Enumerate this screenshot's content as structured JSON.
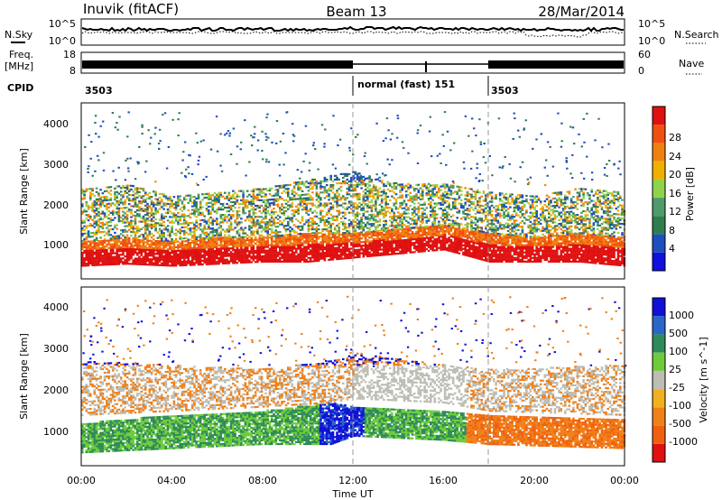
{
  "header": {
    "station": "Inuvik (fitACF)",
    "beam": "Beam 13",
    "date": "28/Mar/2014"
  },
  "colors": {
    "power": [
      "#1010e0",
      "#1e4fbf",
      "#2e7d4f",
      "#4e9a6a",
      "#8fd34a",
      "#f0b000",
      "#f08010",
      "#f05010",
      "#e01010"
    ],
    "velocity": [
      "#1010d8",
      "#2a66c8",
      "#2e8a5a",
      "#6ecc3a",
      "#bdbdb5",
      "#f0b020",
      "#f08018",
      "#f06010",
      "#e01010"
    ]
  },
  "chart_data": [
    {
      "type": "line",
      "name": "noise-panel",
      "left_label": "N.Sky",
      "right_label": "N.Search",
      "yticks_left": [
        "10^5",
        "10^0"
      ],
      "yticks_right": [
        "10^5",
        "10^0"
      ]
    },
    {
      "type": "bar",
      "name": "frequency-nave-panel",
      "left_label": "Freq.",
      "left_unit": "[MHz]",
      "right_label": "Nave",
      "yticks_left": [
        18,
        8
      ],
      "yticks_right": [
        60,
        0
      ]
    },
    {
      "type": "table",
      "name": "cpid-panel",
      "label": "CPID",
      "segments": [
        {
          "start_h": 0,
          "end_h": 12,
          "text": "3503"
        },
        {
          "start_h": 12,
          "end_h": 18,
          "text": "normal (fast) 151"
        },
        {
          "start_h": 18,
          "end_h": 24,
          "text": "3503"
        }
      ]
    },
    {
      "type": "heatmap",
      "name": "power-panel",
      "ylabel": "Slant Range [km]",
      "ylim": [
        200,
        4500
      ],
      "yticks": [
        1000,
        2000,
        3000,
        4000
      ],
      "xlim": [
        0,
        24
      ],
      "colorbar": {
        "label": "Power [dB]",
        "ticks": [
          4,
          8,
          12,
          16,
          20,
          24,
          28
        ]
      },
      "echo_bands": [
        {
          "x": [
            0,
            2,
            4,
            6,
            8,
            10,
            12,
            14,
            16,
            18,
            20,
            22,
            24
          ],
          "range_low": [
            500,
            550,
            500,
            550,
            600,
            600,
            700,
            800,
            900,
            600,
            600,
            600,
            500
          ],
          "range_high": [
            1100,
            1200,
            1100,
            1200,
            1200,
            1300,
            1300,
            1400,
            1500,
            1300,
            1200,
            1300,
            1200
          ],
          "level": 28
        },
        {
          "x": [
            0,
            2,
            4,
            6,
            8,
            10,
            12,
            14,
            16,
            18,
            20,
            22,
            24
          ],
          "range_low": [
            1100,
            1200,
            1100,
            1200,
            1200,
            1300,
            1300,
            1400,
            1500,
            1300,
            1200,
            1300,
            1200
          ],
          "range_high": [
            2400,
            2500,
            2200,
            2300,
            2400,
            2600,
            2800,
            2500,
            2500,
            2300,
            2200,
            2400,
            2300
          ],
          "level": 16
        }
      ]
    },
    {
      "type": "heatmap",
      "name": "velocity-panel",
      "ylabel": "Slant Range [km]",
      "xlabel": "Time UT",
      "ylim": [
        200,
        4500
      ],
      "yticks": [
        1000,
        2000,
        3000,
        4000
      ],
      "xlim": [
        0,
        24
      ],
      "xticks": [
        "00:00",
        "04:00",
        "08:00",
        "12:00",
        "16:00",
        "20:00",
        "00:00"
      ],
      "colorbar": {
        "label": "Velocity [m s^-1]",
        "ticks": [
          1000,
          500,
          100,
          25,
          -25,
          -100,
          -500,
          -1000
        ]
      },
      "echo_bands": [
        {
          "x": [
            0,
            4,
            8,
            11,
            12,
            16,
            18,
            24
          ],
          "range_low": [
            500,
            600,
            700,
            700,
            900,
            800,
            700,
            600
          ],
          "range_high": [
            1200,
            1400,
            1500,
            1700,
            1600,
            1500,
            1400,
            1300
          ],
          "level": 100
        },
        {
          "x": [
            0,
            4,
            8,
            11,
            12,
            16,
            18,
            24
          ],
          "range_low": [
            1400,
            1500,
            1600,
            1700,
            1800,
            1700,
            1500,
            1400
          ],
          "range_high": [
            2700,
            2600,
            2500,
            2700,
            2900,
            2600,
            2500,
            2600
          ],
          "level": -100
        }
      ]
    }
  ]
}
